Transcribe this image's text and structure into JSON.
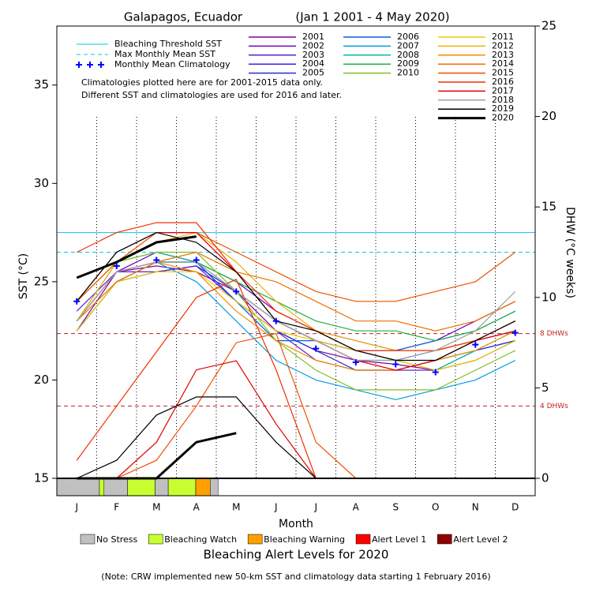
{
  "chart_data": {
    "type": "line",
    "title": "Galapagos, Ecuador",
    "subtitle": "(Jan 1 2001 - 4 May 2020)",
    "xlabel": "Month",
    "ylabel": "SST (°C)",
    "y2label": "DHW (°C weeks)",
    "categories": [
      "J",
      "F",
      "M",
      "A",
      "M",
      "J",
      "J",
      "A",
      "S",
      "O",
      "N",
      "D"
    ],
    "ylim": [
      15,
      38
    ],
    "yticks": [
      15,
      20,
      25,
      30,
      35
    ],
    "y2lim": [
      0,
      25
    ],
    "y2ticks": [
      0,
      5,
      10,
      15,
      20,
      25
    ],
    "threshold": {
      "name": "Bleaching Threshold SST",
      "value": 27.5,
      "color": "#00c8e8"
    },
    "mmm": {
      "name": "Max Monthly Mean SST",
      "value": 26.5,
      "color": "#00c8e8"
    },
    "climatology": {
      "name": "Monthly Mean Climatology",
      "color": "#0000ff",
      "values": [
        24.0,
        25.8,
        26.1,
        26.1,
        24.5,
        23.0,
        21.6,
        20.9,
        20.8,
        20.4,
        21.8,
        22.4
      ]
    },
    "dhw_refs": [
      {
        "value": 8,
        "label": "8 DHWs"
      },
      {
        "value": 4,
        "label": "4 DHWs"
      }
    ],
    "notes": [
      "Climatologies plotted here are for 2001-2015 data only.",
      "Different SST and climatologies are used for 2016 and later."
    ],
    "series": [
      {
        "name": "2001",
        "color": "#8000a0",
        "values": [
          22.5,
          25.5,
          25.8,
          25.5,
          24.5,
          22.5,
          21.5,
          21,
          20.8,
          20.5,
          21.5,
          22
        ]
      },
      {
        "name": "2002",
        "color": "#7000c0",
        "values": [
          23,
          25.5,
          26.5,
          26,
          25,
          23.5,
          22.5,
          22,
          21.5,
          22,
          23,
          24
        ]
      },
      {
        "name": "2003",
        "color": "#6020d0",
        "values": [
          23.5,
          25.5,
          25.5,
          25.8,
          24,
          22.5,
          21,
          20.5,
          20.5,
          20.5,
          21,
          22
        ]
      },
      {
        "name": "2004",
        "color": "#4020e0",
        "values": [
          22.5,
          25,
          25.5,
          25.8,
          24.5,
          23,
          22,
          21.5,
          21,
          21.5,
          22,
          22.5
        ]
      },
      {
        "name": "2005",
        "color": "#2030d0",
        "values": [
          23,
          25.5,
          26,
          26,
          24,
          22.5,
          21.5,
          20.5,
          20.5,
          21,
          21.5,
          22
        ]
      },
      {
        "name": "2006",
        "color": "#0060e0",
        "values": [
          23,
          25.5,
          26,
          26,
          24,
          22,
          22,
          21.5,
          21.5,
          22,
          22.5,
          23.5
        ]
      },
      {
        "name": "2007",
        "color": "#00a0e0",
        "values": [
          22.5,
          25,
          26,
          25,
          23,
          21,
          20,
          19.5,
          19,
          19.5,
          20,
          21
        ]
      },
      {
        "name": "2008",
        "color": "#00c0a0",
        "values": [
          23,
          26,
          26.5,
          26,
          24.5,
          23,
          22,
          21,
          21,
          20.5,
          21.5,
          22.5
        ]
      },
      {
        "name": "2009",
        "color": "#20b040",
        "values": [
          22.5,
          25,
          26,
          26,
          25,
          24,
          23,
          22.5,
          22.5,
          22,
          22.5,
          23.5
        ]
      },
      {
        "name": "2010",
        "color": "#80c020",
        "values": [
          24,
          26,
          26.5,
          26.5,
          24.5,
          22,
          20.5,
          19.5,
          19.5,
          19.5,
          20.5,
          21.5
        ]
      },
      {
        "name": "2011",
        "color": "#f0c800",
        "values": [
          22.5,
          25,
          25.5,
          25.5,
          24,
          22.5,
          22,
          21.5,
          21,
          20.5,
          21,
          22
        ]
      },
      {
        "name": "2012",
        "color": "#f0b000",
        "values": [
          23,
          26,
          27,
          27.5,
          26,
          24,
          22.5,
          22,
          21.5,
          21.5,
          22,
          23
        ]
      },
      {
        "name": "2013",
        "color": "#f09000",
        "values": [
          23,
          25.5,
          26,
          25.5,
          23.5,
          22,
          21,
          20.5,
          20.5,
          21,
          21.5,
          22.5
        ]
      },
      {
        "name": "2014",
        "color": "#f07000",
        "values": [
          23,
          25,
          26,
          26.5,
          25.5,
          25,
          24,
          23,
          23,
          22.5,
          23,
          24
        ]
      },
      {
        "name": "2015",
        "color": "#f05000",
        "values": [
          24,
          26,
          27.5,
          27.5,
          26.5,
          25.5,
          24.5,
          24,
          24,
          24.5,
          25,
          26.5
        ],
        "dhw": [
          0,
          0,
          1,
          4,
          7.5,
          8,
          2,
          0,
          0,
          0,
          0,
          0
        ]
      },
      {
        "name": "2016",
        "color": "#f03000",
        "values": [
          26.5,
          27.5,
          28,
          28,
          25.5,
          23.5,
          22.5,
          21.5,
          21.5,
          21.5,
          22,
          23
        ],
        "dhw": [
          1,
          4,
          7,
          10,
          11,
          6,
          0,
          0,
          0,
          0,
          0,
          0
        ]
      },
      {
        "name": "2017",
        "color": "#e00000",
        "values": [
          24,
          26.5,
          27.5,
          27.5,
          25.5,
          23,
          22,
          21,
          20.5,
          21,
          22,
          22.5
        ],
        "dhw": [
          0,
          0,
          2,
          6,
          6.5,
          3,
          0,
          0,
          0,
          0,
          0,
          0
        ]
      },
      {
        "name": "2018",
        "color": "#a0a0a0",
        "values": [
          23,
          25.5,
          26,
          26,
          24.5,
          23,
          22,
          21,
          21,
          21.5,
          22.5,
          24.5
        ]
      },
      {
        "name": "2019",
        "color": "#000000",
        "values": [
          24,
          26.5,
          27.5,
          27,
          25.5,
          23,
          22.5,
          21.5,
          21,
          21,
          22,
          23
        ],
        "dhw": [
          0,
          1,
          3.5,
          4.5,
          4.5,
          2,
          0,
          0,
          0,
          0,
          0,
          0
        ]
      },
      {
        "name": "2020",
        "color": "#000000",
        "width": 3,
        "values": [
          25.2,
          26,
          27,
          27.3,
          null,
          null,
          null,
          null,
          null,
          null,
          null,
          null
        ],
        "dhw": [
          0,
          0,
          0,
          2,
          2.5,
          null,
          null,
          null,
          null,
          null,
          null,
          null
        ]
      }
    ],
    "alert_title": "Bleaching Alert Levels for 2020",
    "alert_levels": [
      {
        "name": "No Stress",
        "color": "#c0c0c0"
      },
      {
        "name": "Bleaching Watch",
        "color": "#c8ff30"
      },
      {
        "name": "Bleaching Warning",
        "color": "#ffa000"
      },
      {
        "name": "Alert Level 1",
        "color": "#ff0000"
      },
      {
        "name": "Alert Level 2",
        "color": "#900000"
      }
    ],
    "alert_segments": [
      {
        "start": 0,
        "end": 32.5,
        "level": 0
      },
      {
        "start": 32.5,
        "end": 36,
        "level": 1
      },
      {
        "start": 36,
        "end": 54,
        "level": 0
      },
      {
        "start": 54,
        "end": 75,
        "level": 1
      },
      {
        "start": 75,
        "end": 85,
        "level": 0
      },
      {
        "start": 85,
        "end": 106,
        "level": 1
      },
      {
        "start": 106,
        "end": 117,
        "level": 2
      },
      {
        "start": 117,
        "end": 123,
        "level": 0
      }
    ],
    "xlim": [
      0,
      365
    ],
    "footnote": "(Note: CRW implemented new 50-km SST and climatology data starting 1 February 2016)"
  }
}
